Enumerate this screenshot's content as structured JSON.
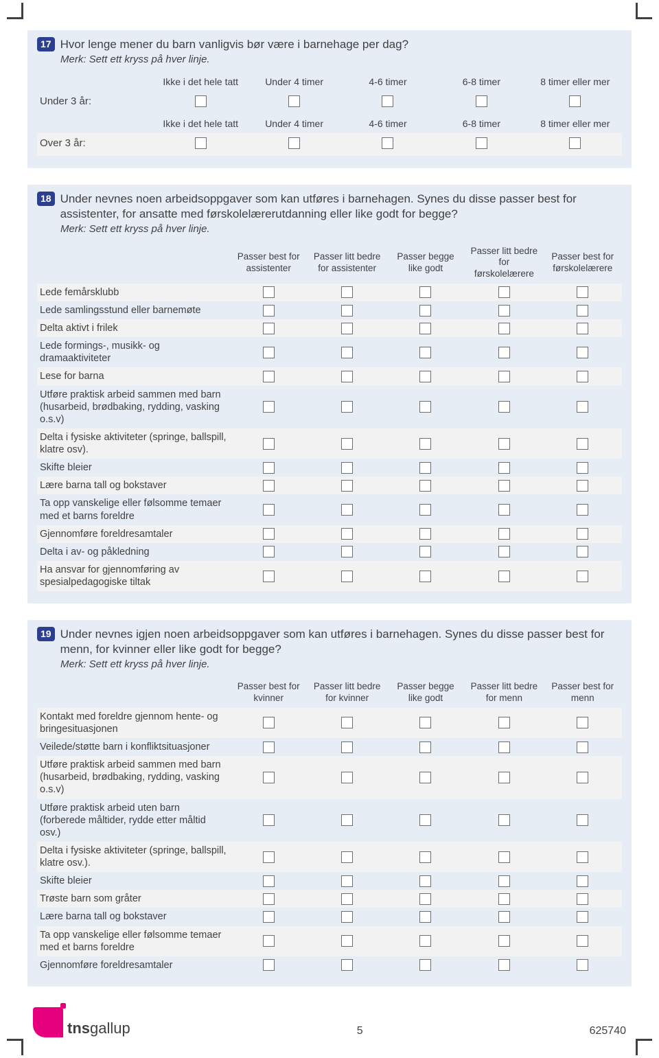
{
  "q17": {
    "number": "17",
    "question": "Hvor lenge mener du barn vanligvis bør være i barnehage per dag?",
    "note": "Merk: Sett ett kryss på hver linje.",
    "columns": [
      "Ikke i det hele tatt",
      "Under 4 timer",
      "4-6 timer",
      "6-8 timer",
      "8 timer eller mer"
    ],
    "rows": [
      "Under 3 år:",
      "Over 3 år:"
    ]
  },
  "q18": {
    "number": "18",
    "question": "Under nevnes noen arbeidsoppgaver som kan utføres i barnehagen. Synes du disse passer best for assistenter, for ansatte med førskolelærerutdanning eller like godt for begge?",
    "note": "Merk: Sett ett kryss på hver linje.",
    "columns": [
      "Passer best for assistenter",
      "Passer litt bedre for assistenter",
      "Passer begge like godt",
      "Passer litt bedre for førskolelærere",
      "Passer best for førskolelærere"
    ],
    "rows": [
      "Lede femårsklubb",
      "Lede samlingsstund eller barnemøte",
      "Delta aktivt i frilek",
      "Lede formings-, musikk- og dramaaktiviteter",
      "Lese for barna",
      "Utføre praktisk arbeid sammen med barn (husarbeid, brødbaking, rydding, vasking o.s.v)",
      "Delta i fysiske aktiviteter (springe, ballspill, klatre osv).",
      "Skifte bleier",
      "Lære barna tall og bokstaver",
      "Ta opp vanskelige eller følsomme temaer med et barns foreldre",
      "Gjennomføre foreldresamtaler",
      "Delta i av- og påkledning",
      "Ha ansvar for gjennomføring av spesialpedagogiske tiltak"
    ]
  },
  "q19": {
    "number": "19",
    "question": "Under nevnes igjen noen arbeidsoppgaver som kan utføres i barnehagen. Synes du disse passer best for menn, for kvinner eller like godt for begge?",
    "note": "Merk: Sett ett kryss på hver linje.",
    "columns": [
      "Passer best for kvinner",
      "Passer litt bedre for kvinner",
      "Passer begge like godt",
      "Passer litt bedre for menn",
      "Passer best for menn"
    ],
    "rows": [
      "Kontakt med foreldre gjennom hente- og bringesituasjonen",
      "Veilede/støtte barn i konfliktsituasjoner",
      "Utføre praktisk arbeid sammen med barn (husarbeid, brødbaking, rydding, vasking o.s.v)",
      "Utføre praktisk arbeid uten barn (forberede måltider, rydde etter måltid osv.)",
      "Delta i fysiske aktiviteter (springe, ballspill, klatre osv.).",
      "Skifte bleier",
      "Trøste barn som gråter",
      "Lære barna tall og bokstaver",
      "Ta opp vanskelige eller følsomme temaer med et barns foreldre",
      "Gjennomføre foreldresamtaler"
    ]
  },
  "footer": {
    "logo_bold": "tns",
    "logo_light": "gallup",
    "page": "5",
    "docid": "625740"
  },
  "colors": {
    "panel": "#e7edf5",
    "alt": "#f2f2f2",
    "badge": "#2c3e8f",
    "text": "#414142",
    "logo": "#e6007e"
  }
}
